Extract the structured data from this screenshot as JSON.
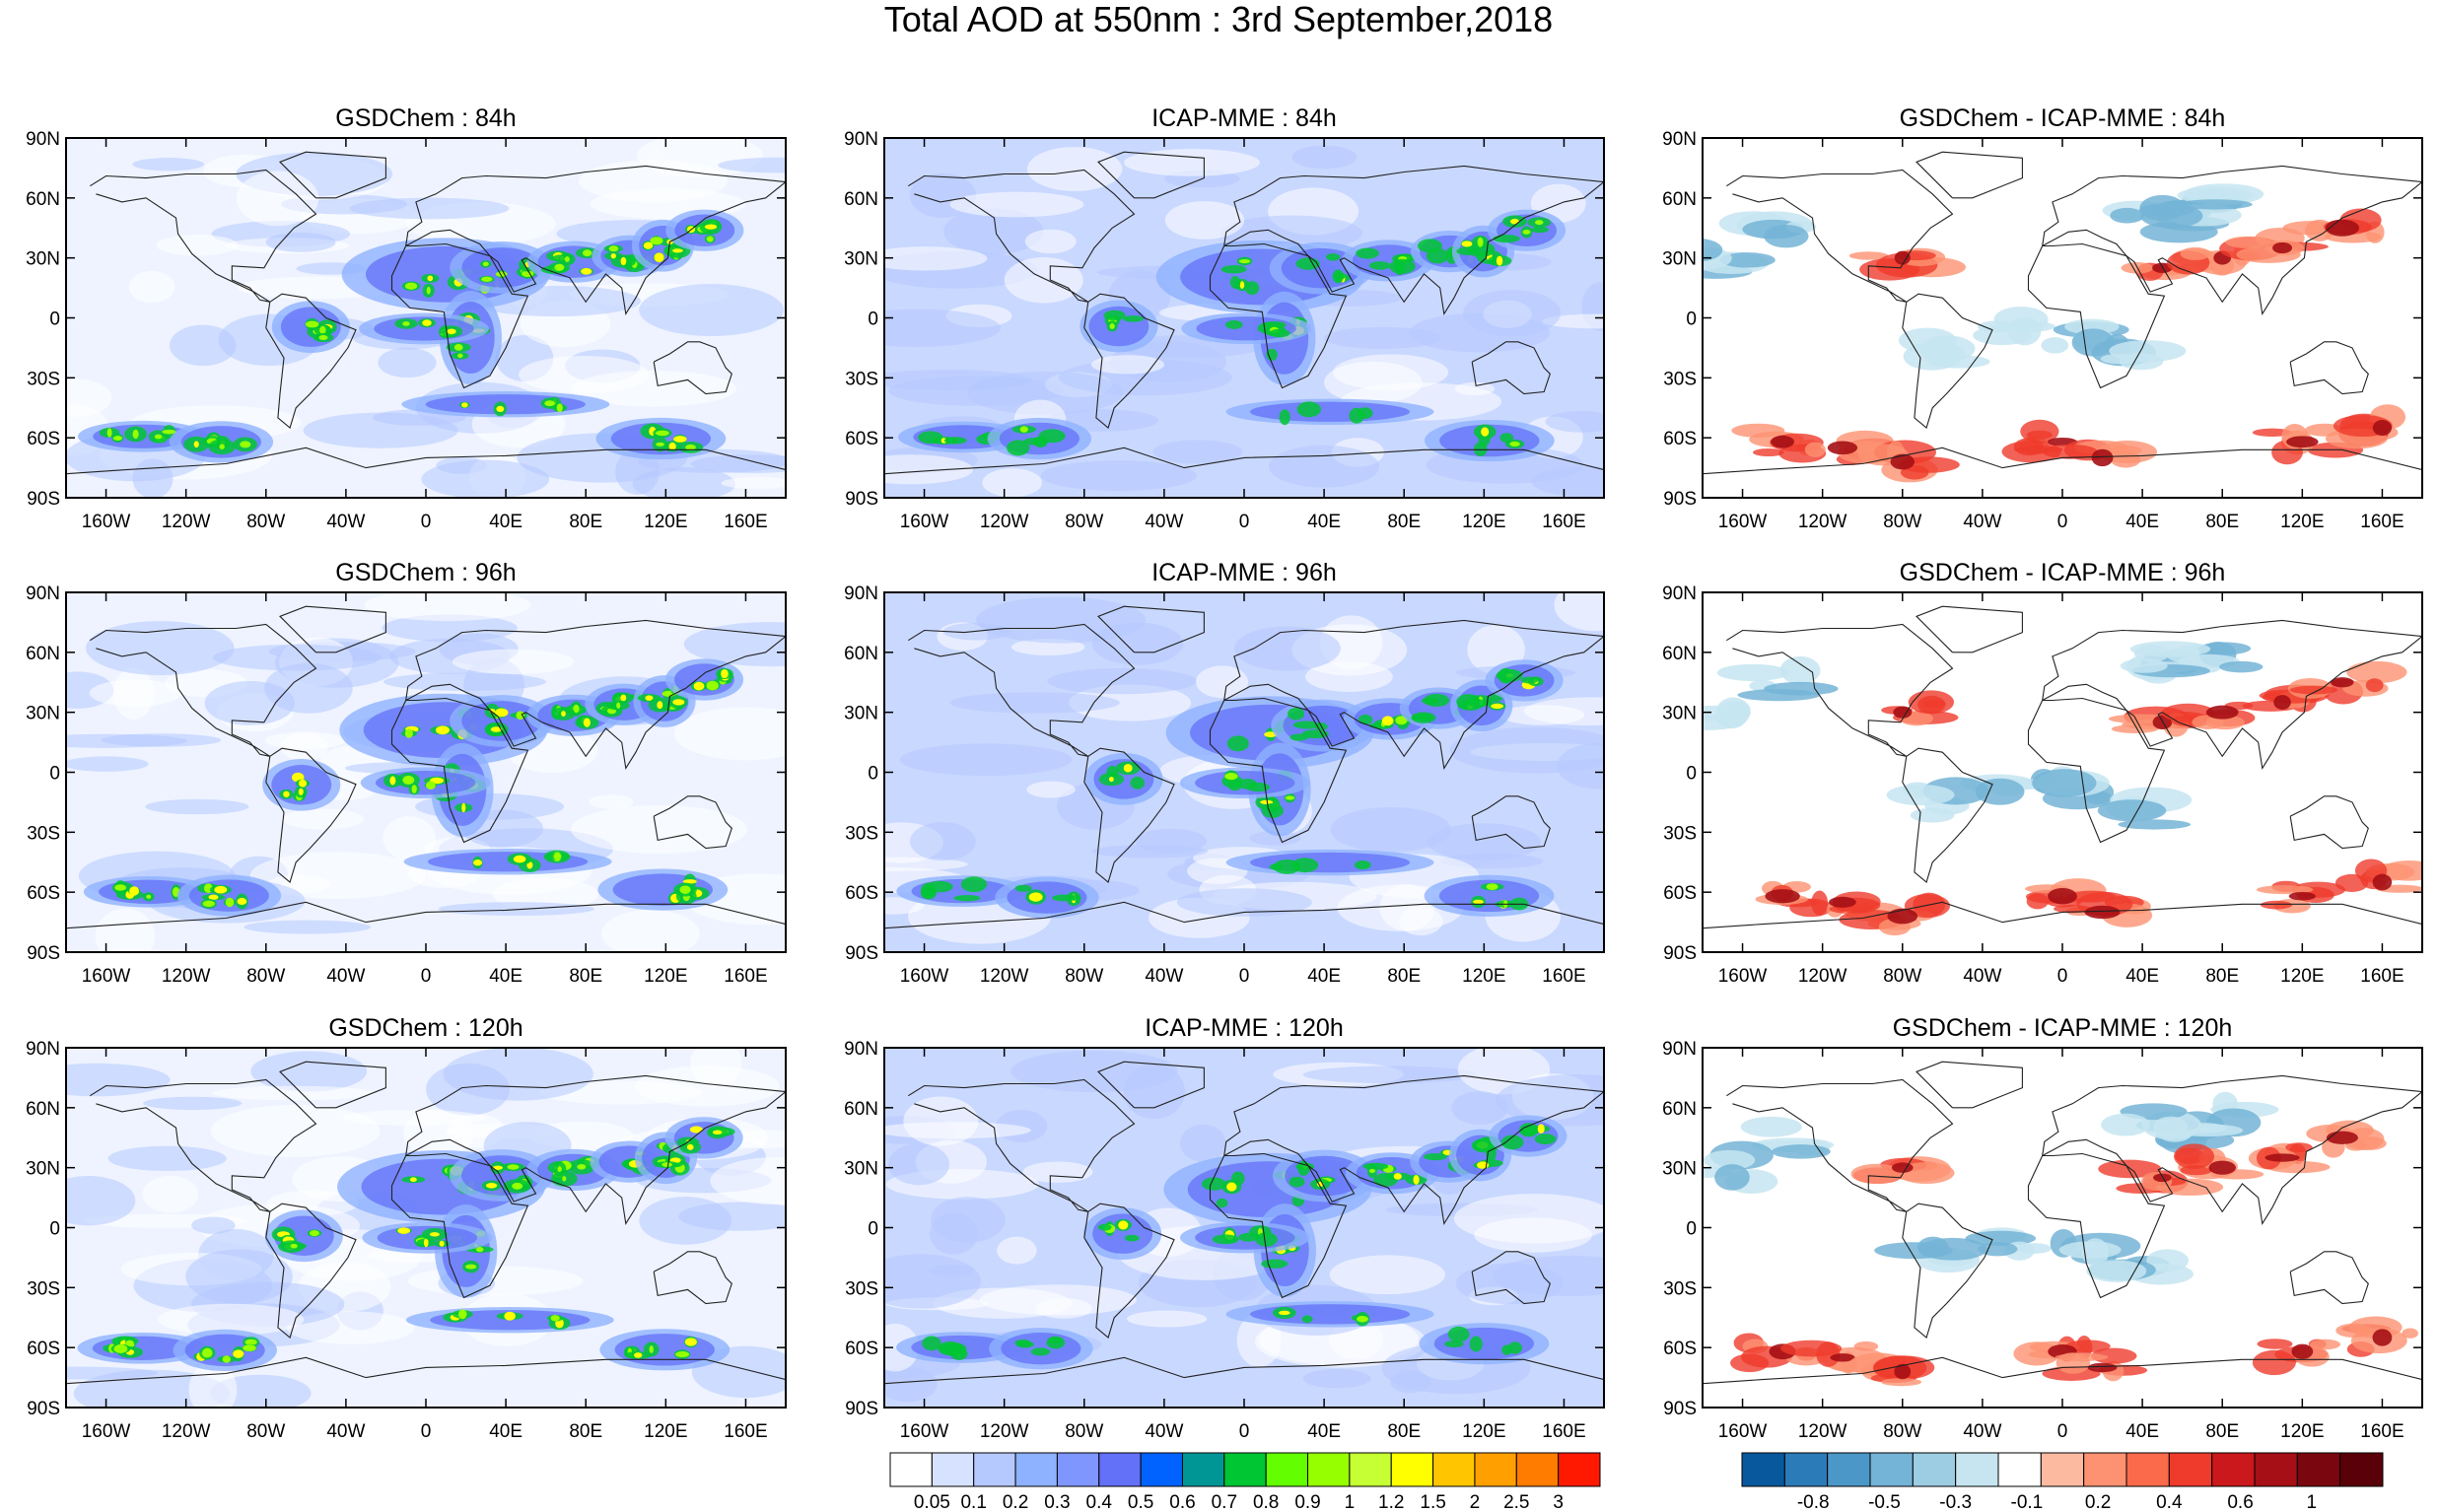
{
  "title": "Total AOD at 550nm : 3rd September,2018",
  "panels": [
    {
      "row": 0,
      "col": 0,
      "title": "GSDChem : 84h",
      "kind": "aod",
      "seed": 11
    },
    {
      "row": 0,
      "col": 1,
      "title": "ICAP-MME : 84h",
      "kind": "aod_smooth",
      "seed": 12
    },
    {
      "row": 0,
      "col": 2,
      "title": "GSDChem - ICAP-MME : 84h",
      "kind": "diff",
      "seed": 13
    },
    {
      "row": 1,
      "col": 0,
      "title": "GSDChem : 96h",
      "kind": "aod",
      "seed": 21
    },
    {
      "row": 1,
      "col": 1,
      "title": "ICAP-MME : 96h",
      "kind": "aod_smooth",
      "seed": 22
    },
    {
      "row": 1,
      "col": 2,
      "title": "GSDChem - ICAP-MME : 96h",
      "kind": "diff",
      "seed": 23
    },
    {
      "row": 2,
      "col": 0,
      "title": "GSDChem : 120h",
      "kind": "aod",
      "seed": 31
    },
    {
      "row": 2,
      "col": 1,
      "title": "ICAP-MME : 120h",
      "kind": "aod_smooth",
      "seed": 32
    },
    {
      "row": 2,
      "col": 2,
      "title": "GSDChem - ICAP-MME : 120h",
      "kind": "diff",
      "seed": 33
    }
  ],
  "lat_ticks": [
    "90N",
    "60N",
    "30N",
    "0",
    "30S",
    "60S",
    "90S"
  ],
  "lon_ticks": [
    "160W",
    "120W",
    "80W",
    "40W",
    "0",
    "40E",
    "80E",
    "120E",
    "160E"
  ],
  "aod_colorbar": {
    "labels": [
      "0.05",
      "0.1",
      "0.2",
      "0.3",
      "0.4",
      "0.5",
      "0.6",
      "0.7",
      "0.8",
      "0.9",
      "1",
      "1.2",
      "1.5",
      "2",
      "2.5",
      "3"
    ],
    "colors": [
      "#ffffff",
      "#d6e2ff",
      "#b5c9ff",
      "#8eb2ff",
      "#7f96ff",
      "#6370f8",
      "#0063ff",
      "#009696",
      "#00c633",
      "#63ff00",
      "#96ff00",
      "#c6ff33",
      "#ffff00",
      "#ffc600",
      "#ffa000",
      "#ff7c00",
      "#ff1900"
    ]
  },
  "diff_colorbar": {
    "labels": [
      "-0.8",
      "-0.5",
      "-0.3",
      "-0.1",
      "0.2",
      "0.4",
      "0.6",
      "1"
    ],
    "colors": [
      "#08589e",
      "#2b7bb8",
      "#4b98c8",
      "#74b4d6",
      "#9ccde2",
      "#c6e5f1",
      "#ffffff",
      "#fcbba1",
      "#fc9272",
      "#fb6a4a",
      "#ef3b2c",
      "#cb181d",
      "#a50f15",
      "#7a0610",
      "#5a0008"
    ]
  }
}
